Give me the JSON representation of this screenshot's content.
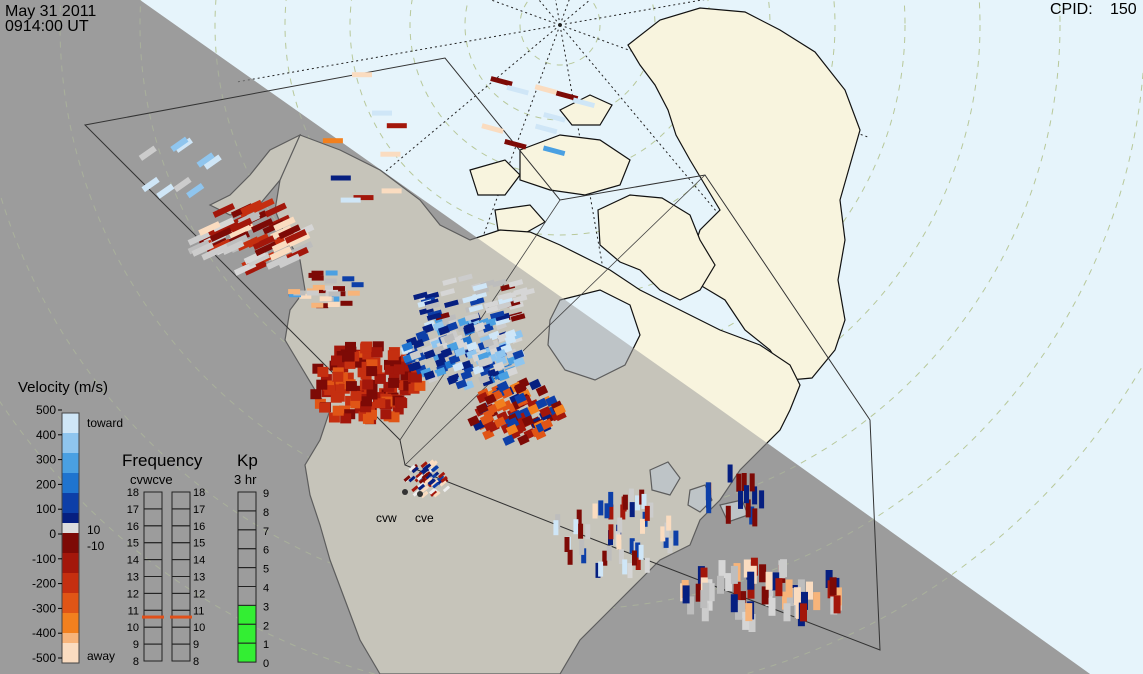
{
  "header": {
    "date": "May 31 2011",
    "time": "0914:00 UT",
    "cpid_label": "CPID:",
    "cpid_value": "150"
  },
  "colors": {
    "night": "#9c9c9c",
    "day_ocean": "#e6f4fb",
    "day_land": "#f8f4de",
    "lat_circle": "#b8c89a",
    "fov_outline": "#333333"
  },
  "chart_data": {
    "type": "heatmap",
    "title": "",
    "velocity_scale": {
      "title": "Velocity (m/s)",
      "ticks": [
        "500",
        "400",
        "300",
        "200",
        "100",
        "0",
        "-100",
        "-200",
        "-300",
        "-400",
        "-500"
      ],
      "toward_label": "toward",
      "away_label": "away",
      "plus_threshold": "10",
      "minus_threshold": "-10",
      "toward_colors": [
        "#cfe6f7",
        "#8fc5ee",
        "#4aa0e2",
        "#1f74cf",
        "#0d3fa8",
        "#061f80"
      ],
      "away_colors": [
        "#7d0a06",
        "#a3170b",
        "#c52f10",
        "#e05516",
        "#f2801e",
        "#f7b47a",
        "#fadcc0"
      ]
    },
    "frequency": {
      "title": "Frequency",
      "subtitle": "cvwcve",
      "ticks": [
        "18",
        "17",
        "16",
        "15",
        "14",
        "13",
        "12",
        "11",
        "10",
        "9",
        "8"
      ],
      "radars": [
        {
          "name": "cvw",
          "value_mhz": 10.6
        },
        {
          "name": "cve",
          "value_mhz": 10.6
        }
      ],
      "marker_color": "#e0501a"
    },
    "kp": {
      "title": "Kp",
      "subtitle": "3 hr",
      "ticks": [
        "9",
        "8",
        "7",
        "6",
        "5",
        "4",
        "3",
        "2",
        "1",
        "0"
      ],
      "value": 3,
      "fill_color": "#33ee33"
    },
    "radars": [
      {
        "name": "cvw"
      },
      {
        "name": "cve"
      }
    ]
  }
}
